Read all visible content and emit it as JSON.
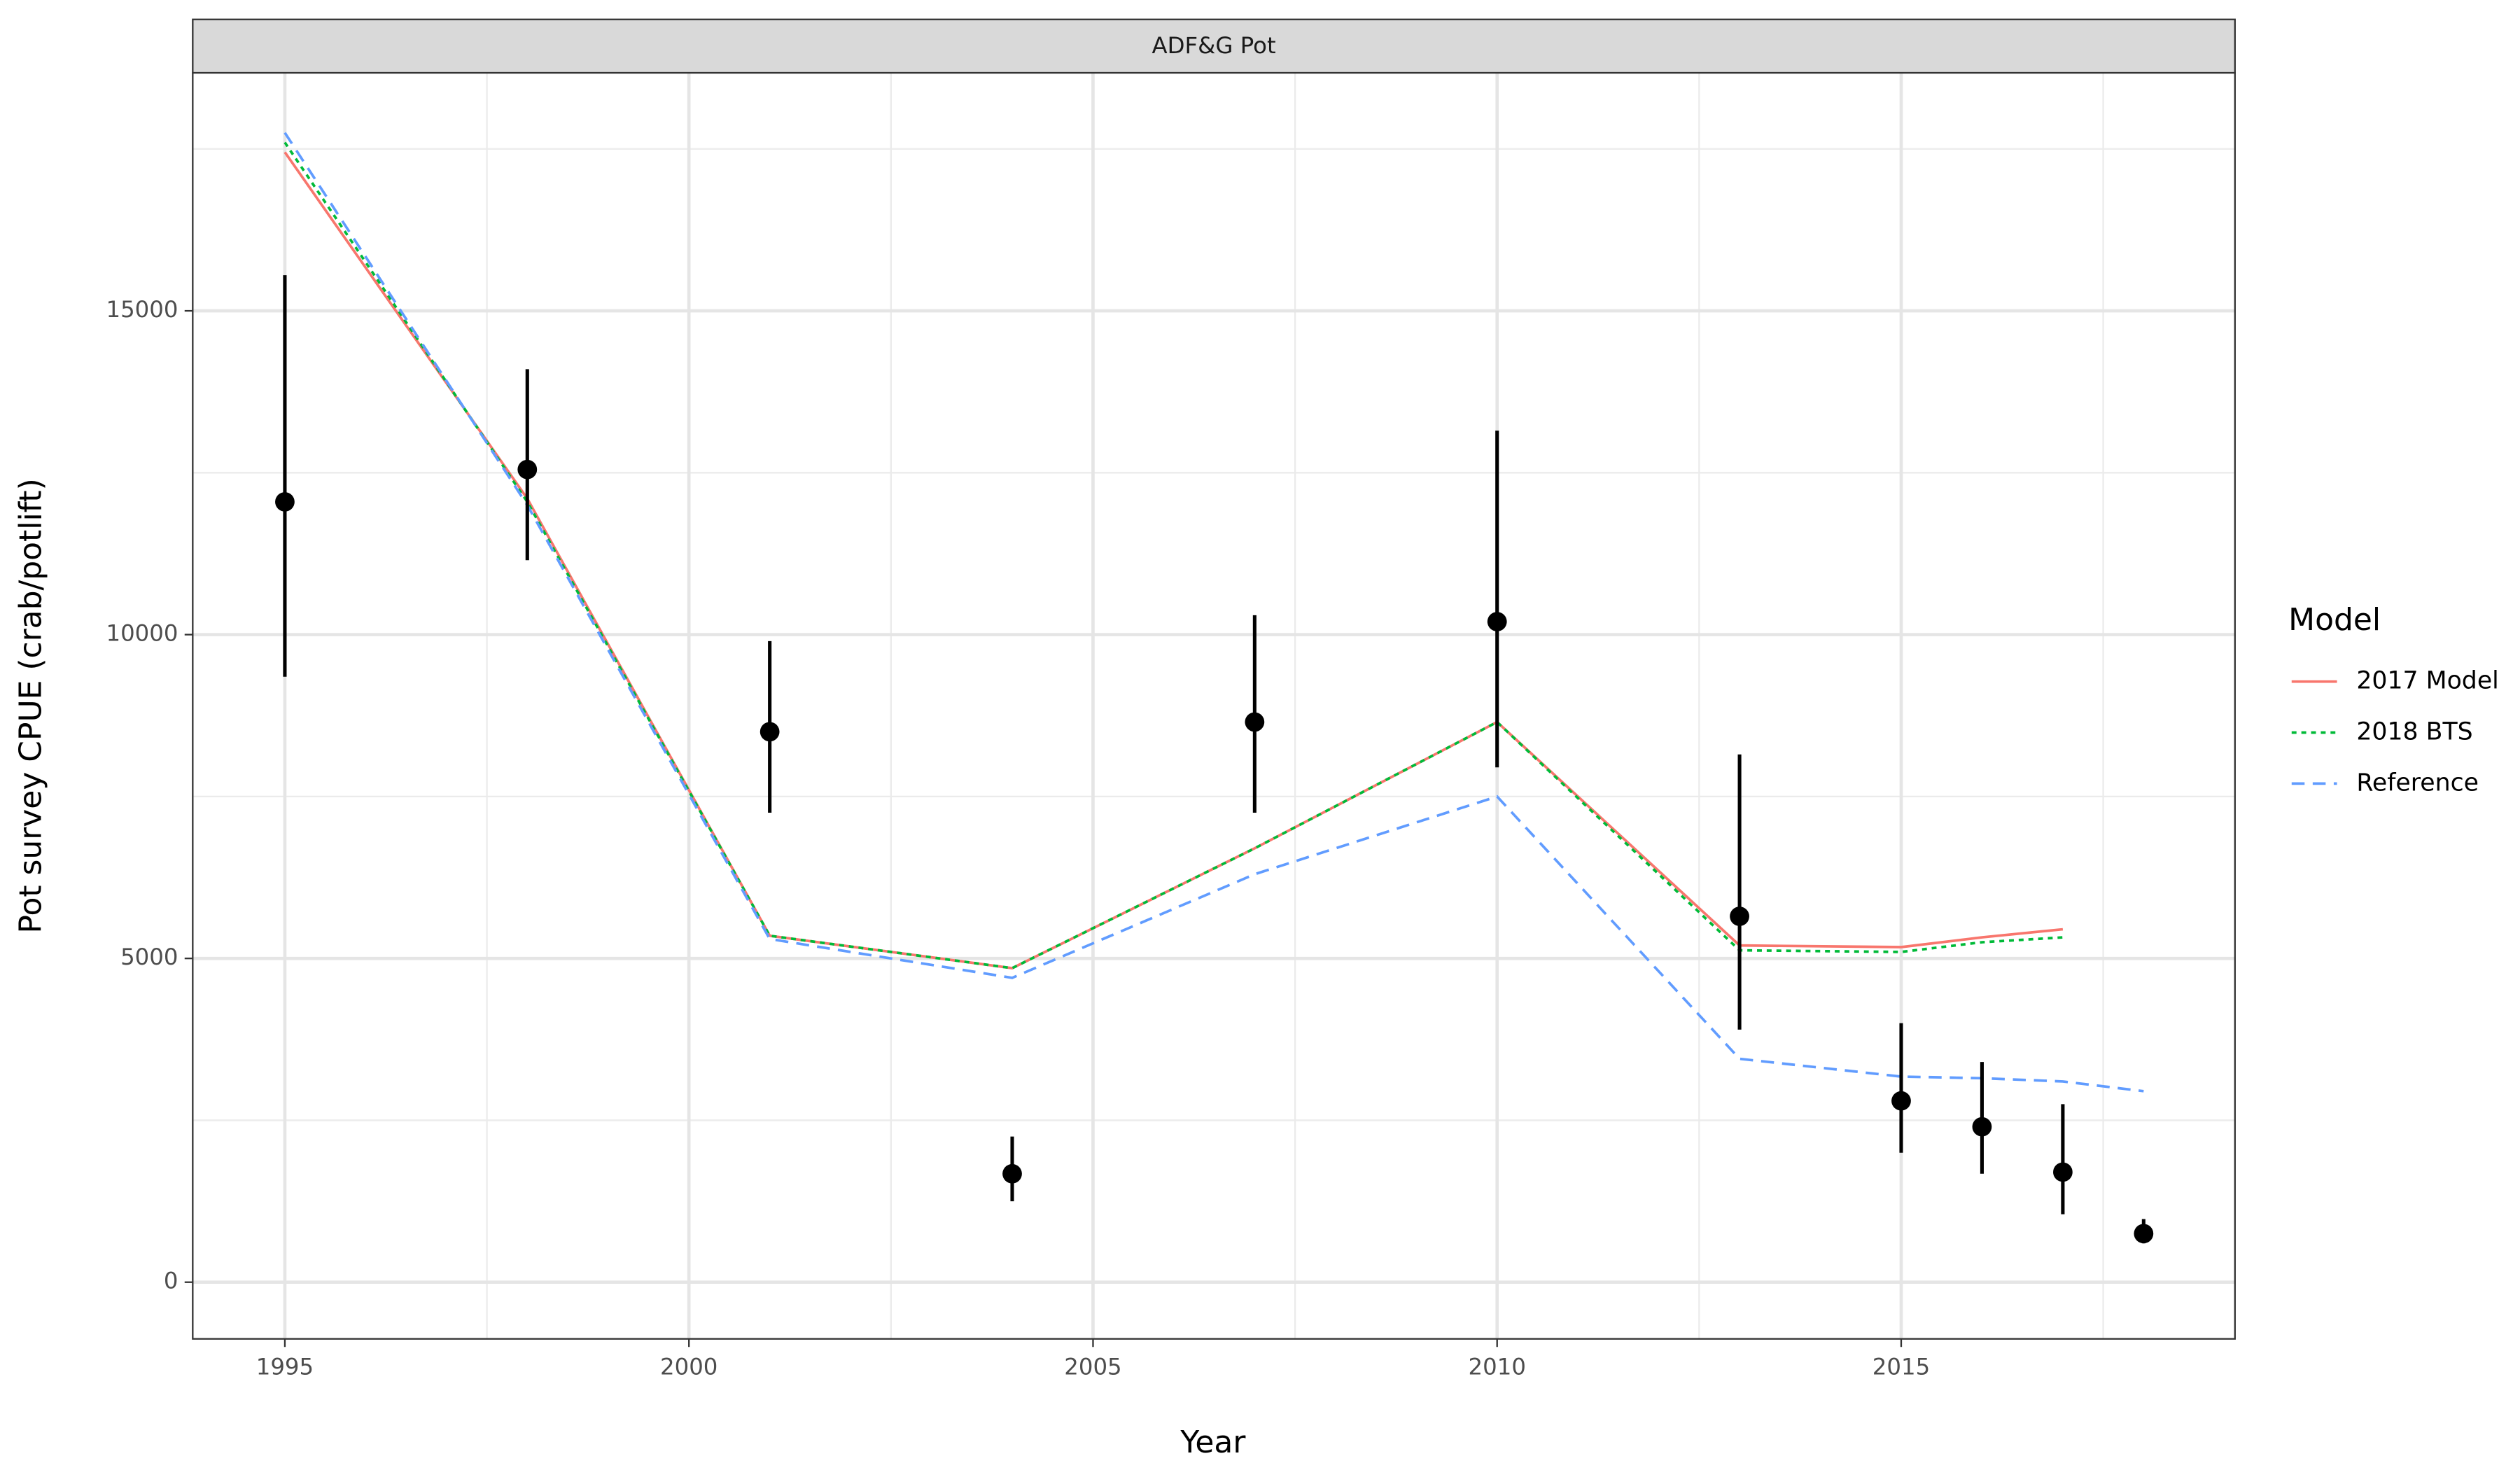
{
  "chart_data": {
    "type": "line",
    "strip_title": "ADF&G Pot",
    "x_label": "Year",
    "y_label": "Pot survey CPUE (crab/potlift)",
    "legend_title": "Model",
    "legend_position": "right",
    "grid": true,
    "x": [
      1995,
      1998,
      2001,
      2004,
      2007,
      2010,
      2013,
      2015,
      2016,
      2017,
      2018
    ],
    "observed": {
      "color": "#000000",
      "values": [
        12050,
        12550,
        8500,
        1675,
        8650,
        10200,
        5650,
        2800,
        2400,
        1700,
        750
      ],
      "lower": [
        9350,
        11150,
        7250,
        1250,
        7250,
        7950,
        3900,
        2000,
        1675,
        1050,
        600
      ],
      "upper": [
        15550,
        14100,
        9900,
        2250,
        10300,
        13150,
        8150,
        4000,
        3400,
        2750,
        975
      ]
    },
    "series": [
      {
        "name": "2017 Model",
        "color": "#F8766D",
        "linetype": "solid",
        "values": [
          17450,
          12100,
          5350,
          4850,
          6700,
          8650,
          5200,
          5175,
          5325,
          5450,
          null
        ]
      },
      {
        "name": "2018 BTS",
        "color": "#00BA38",
        "linetype": "dotted",
        "values": [
          17600,
          12050,
          5350,
          4850,
          6700,
          8650,
          5125,
          5100,
          5250,
          5325,
          null
        ]
      },
      {
        "name": "Reference",
        "color": "#619CFF",
        "linetype": "dashed",
        "values": [
          17750,
          12000,
          5300,
          4700,
          6300,
          7500,
          3450,
          3175,
          3150,
          3100,
          2950
        ]
      }
    ],
    "xlim": [
      1993.86,
      2019.13
    ],
    "ylim": [
      -875,
      18675
    ],
    "xticks": [
      1995,
      2000,
      2005,
      2010,
      2015
    ],
    "yticks": [
      0,
      5000,
      10000,
      15000
    ],
    "minor_xticks": [
      1997.5,
      2002.5,
      2007.5,
      2012.5,
      2017.5
    ],
    "minor_yticks": [
      2500,
      7500,
      12500,
      17500
    ]
  }
}
